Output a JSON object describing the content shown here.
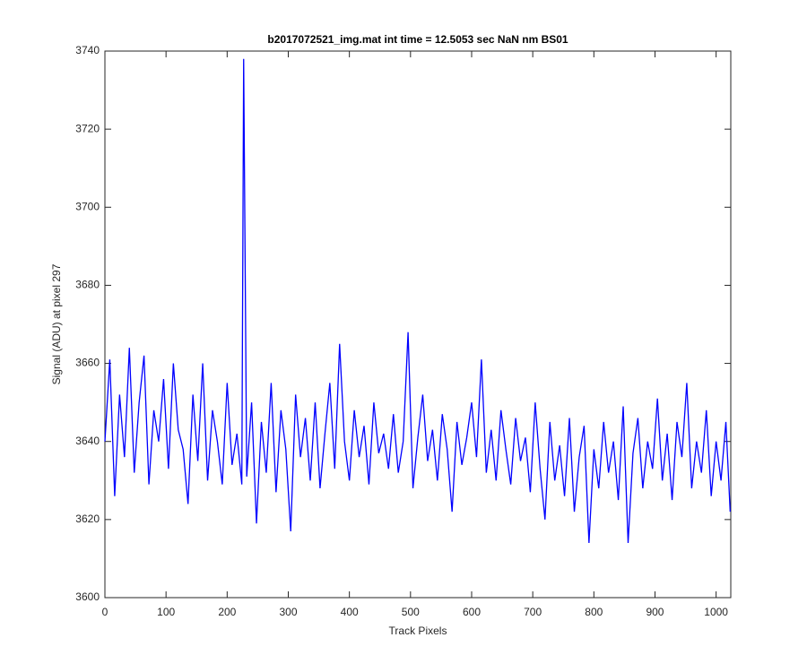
{
  "chart_data": {
    "type": "line",
    "title": "b2017072521_img.mat int time = 12.5053 sec  NaN nm BS01",
    "x_label": "Track Pixels",
    "y_label": "Signal (ADU) at pixel 297",
    "x": [
      0,
      8,
      16,
      24,
      32,
      40,
      48,
      56,
      64,
      72,
      80,
      88,
      96,
      104,
      112,
      120,
      128,
      136,
      144,
      152,
      160,
      168,
      176,
      184,
      192,
      200,
      208,
      216,
      224,
      227,
      232,
      240,
      248,
      256,
      264,
      272,
      280,
      288,
      296,
      304,
      312,
      320,
      328,
      336,
      344,
      352,
      360,
      368,
      376,
      384,
      392,
      400,
      408,
      416,
      424,
      432,
      440,
      448,
      456,
      464,
      472,
      480,
      488,
      496,
      504,
      512,
      520,
      528,
      536,
      544,
      552,
      560,
      568,
      576,
      584,
      592,
      600,
      608,
      616,
      624,
      632,
      640,
      648,
      656,
      664,
      672,
      680,
      688,
      696,
      704,
      712,
      720,
      728,
      736,
      744,
      752,
      760,
      768,
      776,
      784,
      792,
      800,
      808,
      816,
      824,
      832,
      840,
      848,
      856,
      864,
      872,
      880,
      888,
      896,
      904,
      912,
      920,
      928,
      936,
      944,
      952,
      960,
      968,
      976,
      984,
      992,
      1000,
      1008,
      1016,
      1023
    ],
    "series": [
      {
        "color": "#0000ff",
        "values": [
          3640,
          3661,
          3626,
          3652,
          3636,
          3664,
          3632,
          3650,
          3662,
          3629,
          3648,
          3640,
          3656,
          3633,
          3660,
          3643,
          3638,
          3624,
          3652,
          3635,
          3660,
          3630,
          3648,
          3640,
          3629,
          3655,
          3634,
          3642,
          3629,
          3738,
          3631,
          3650,
          3619,
          3645,
          3632,
          3655,
          3627,
          3648,
          3638,
          3617,
          3652,
          3636,
          3646,
          3630,
          3650,
          3628,
          3642,
          3655,
          3633,
          3665,
          3640,
          3630,
          3648,
          3636,
          3644,
          3629,
          3650,
          3637,
          3642,
          3633,
          3647,
          3632,
          3640,
          3668,
          3628,
          3641,
          3652,
          3635,
          3643,
          3630,
          3647,
          3638,
          3622,
          3645,
          3634,
          3641,
          3650,
          3636,
          3661,
          3632,
          3643,
          3630,
          3648,
          3638,
          3629,
          3646,
          3635,
          3641,
          3627,
          3650,
          3633,
          3620,
          3645,
          3630,
          3639,
          3626,
          3646,
          3622,
          3636,
          3644,
          3614,
          3638,
          3628,
          3645,
          3632,
          3640,
          3625,
          3649,
          3614,
          3637,
          3646,
          3628,
          3640,
          3633,
          3651,
          3630,
          3642,
          3625,
          3645,
          3636,
          3655,
          3628,
          3640,
          3632,
          3648,
          3626,
          3640,
          3630,
          3645,
          3622
        ]
      }
    ],
    "xlim": [
      0,
      1024
    ],
    "xticks": [
      0,
      100,
      200,
      300,
      400,
      500,
      600,
      700,
      800,
      900,
      1000
    ],
    "ylim": [
      3600,
      3740
    ],
    "yticks": [
      3600,
      3620,
      3640,
      3660,
      3680,
      3700,
      3720,
      3740
    ]
  }
}
